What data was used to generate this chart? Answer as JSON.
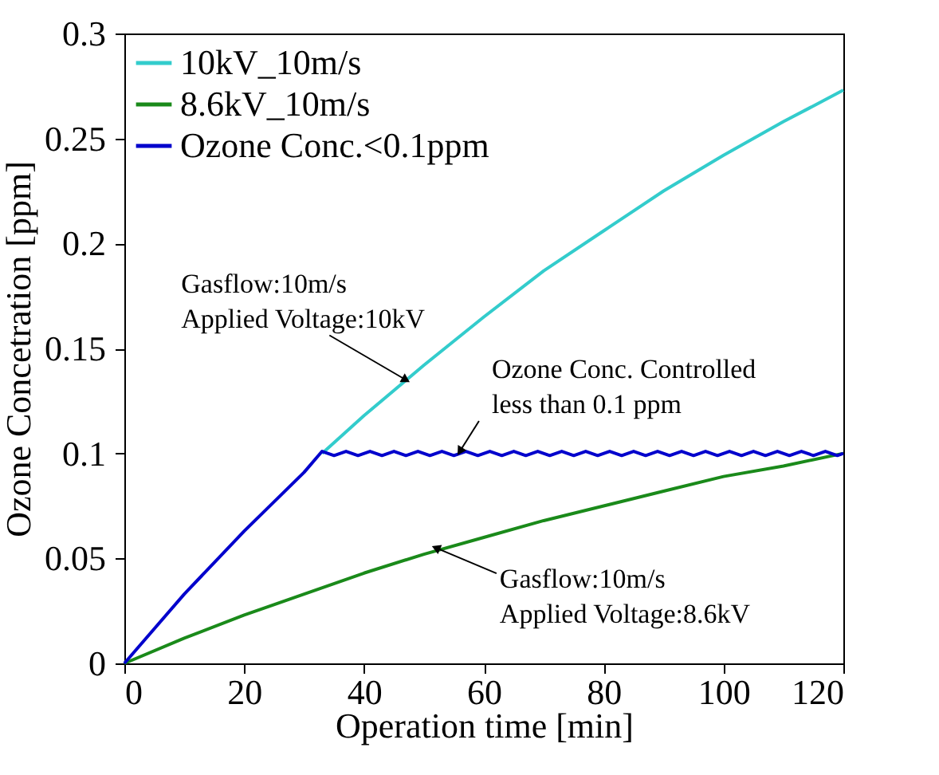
{
  "chart_data": {
    "type": "line",
    "xlabel": "Operation time [min]",
    "ylabel": "Ozone Concetration  [ppm]",
    "xlim": [
      0,
      120
    ],
    "xticks": [
      0,
      20,
      40,
      60,
      80,
      100,
      120
    ],
    "ylim": [
      0,
      0.3
    ],
    "yticks": [
      0,
      0.05,
      0.1,
      0.15,
      0.2,
      0.25,
      0.3
    ],
    "grid": false,
    "legend": "top left",
    "marker": "none",
    "line_style": "solid",
    "series": [
      {
        "name": "10kV_10m/s",
        "color": "#33cccc",
        "x": [
          33,
          40,
          50,
          60,
          70,
          80,
          90,
          100,
          110,
          120
        ],
        "values": [
          0.1,
          0.118,
          0.142,
          0.165,
          0.187,
          0.206,
          0.225,
          0.242,
          0.258,
          0.273
        ]
      },
      {
        "name": "8.6kV_10m/s",
        "color": "#1a8a1a",
        "x": [
          0,
          10,
          20,
          30,
          40,
          50,
          60,
          70,
          80,
          90,
          100,
          110,
          120
        ],
        "values": [
          0,
          0.012,
          0.023,
          0.033,
          0.043,
          0.052,
          0.06,
          0.068,
          0.075,
          0.082,
          0.089,
          0.094,
          0.1
        ]
      },
      {
        "name": "Ozone Conc.<0.1ppm",
        "color": "#0000cc",
        "x": [
          0,
          10,
          20,
          30,
          33,
          35,
          37,
          39,
          41,
          43,
          45,
          47,
          49,
          51,
          53,
          55,
          57,
          59,
          61,
          63,
          65,
          67,
          69,
          71,
          73,
          75,
          77,
          79,
          81,
          83,
          85,
          87,
          89,
          91,
          93,
          95,
          97,
          99,
          101,
          103,
          105,
          107,
          109,
          111,
          113,
          115,
          117,
          119,
          120
        ],
        "values": [
          0,
          0.033,
          0.063,
          0.091,
          0.101,
          0.099,
          0.101,
          0.099,
          0.101,
          0.099,
          0.101,
          0.099,
          0.101,
          0.099,
          0.101,
          0.099,
          0.101,
          0.099,
          0.101,
          0.099,
          0.101,
          0.099,
          0.101,
          0.099,
          0.101,
          0.099,
          0.101,
          0.099,
          0.101,
          0.099,
          0.101,
          0.099,
          0.101,
          0.099,
          0.101,
          0.099,
          0.101,
          0.099,
          0.101,
          0.099,
          0.101,
          0.099,
          0.101,
          0.099,
          0.101,
          0.099,
          0.101,
          0.099,
          0.1
        ]
      }
    ],
    "annotations": [
      {
        "text": "Gasflow:10m/s\nApplied Voltage:10kV",
        "x": 47,
        "y": 0.135
      },
      {
        "text": "Ozone Conc. Controlled\nless than 0.1 ppm",
        "x": 56,
        "y": 0.101
      },
      {
        "text": "Gasflow:10m/s\nApplied Voltage:8.6kV",
        "x": 52,
        "y": 0.055
      }
    ]
  }
}
